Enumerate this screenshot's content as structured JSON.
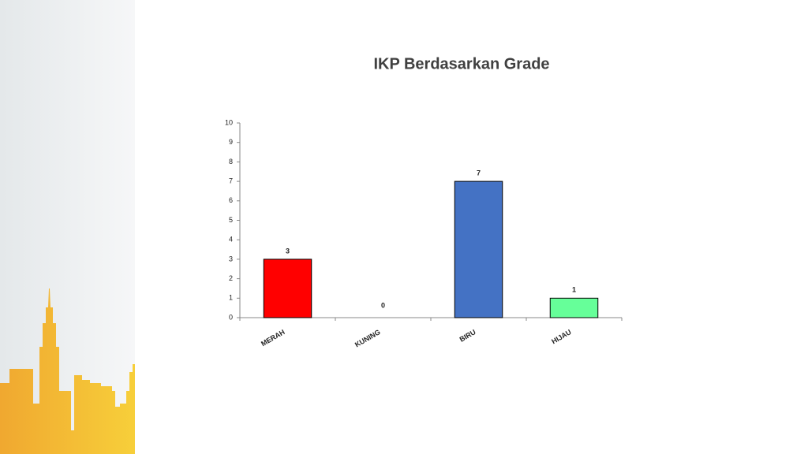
{
  "chart_data": {
    "type": "bar",
    "title": "IKP Berdasarkan Grade",
    "categories": [
      "MERAH",
      "KUNING",
      "BIRU",
      "HIJAU"
    ],
    "values": [
      3,
      0,
      7,
      1
    ],
    "colors": [
      "#ff0000",
      "#ffff00",
      "#4472c4",
      "#66ff99"
    ],
    "ylim": [
      0,
      10
    ],
    "yticks": [
      0,
      1,
      2,
      3,
      4,
      5,
      6,
      7,
      8,
      9,
      10
    ],
    "grid": false
  }
}
